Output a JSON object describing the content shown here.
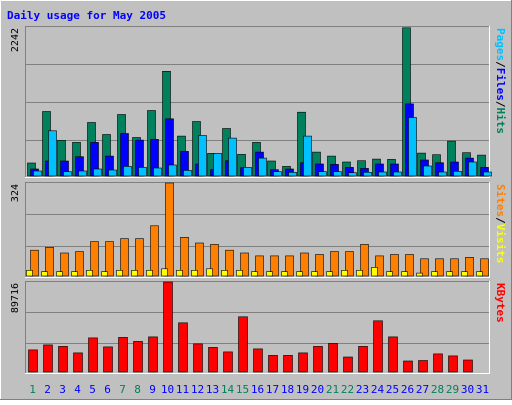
{
  "title": "Daily usage for May 2005",
  "colors": {
    "background": "#c0c0c0",
    "title": "#0000ff",
    "hits": "#00805c",
    "files": "#0000ff",
    "pages": "#00c0ff",
    "visits": "#ffff00",
    "sites": "#ff8000",
    "kbytes": "#ff0000",
    "weekend_label": "#00805c",
    "weekday_label": "#0000ff"
  },
  "chart_data": [
    {
      "type": "bar",
      "panel": "top",
      "scale_label": "2242",
      "ylim": [
        0,
        2242
      ],
      "categories": [
        "1",
        "2",
        "3",
        "4",
        "5",
        "6",
        "7",
        "8",
        "9",
        "10",
        "11",
        "12",
        "13",
        "14",
        "15",
        "16",
        "17",
        "18",
        "19",
        "20",
        "21",
        "22",
        "23",
        "24",
        "25",
        "26",
        "27",
        "28",
        "29",
        "30",
        "31"
      ],
      "weekend_days": [
        1,
        7,
        8,
        14,
        15,
        21,
        22,
        28,
        29
      ],
      "legend": [
        {
          "text": "Pages",
          "color": "#00c0ff"
        },
        {
          "text": "/",
          "color": "#000000"
        },
        {
          "text": "Files",
          "color": "#0000ff"
        },
        {
          "text": "/",
          "color": "#000000"
        },
        {
          "text": "Hits",
          "color": "#00805c"
        }
      ],
      "series": [
        {
          "name": "Hits",
          "color": "#00805c",
          "values": [
            195,
            970,
            535,
            505,
            805,
            625,
            925,
            580,
            985,
            1575,
            600,
            820,
            340,
            715,
            325,
            505,
            225,
            145,
            960,
            360,
            300,
            210,
            230,
            255,
            250,
            2230,
            345,
            320,
            525,
            350,
            315
          ]
        },
        {
          "name": "Files",
          "color": "#0000ff",
          "values": [
            105,
            225,
            225,
            290,
            505,
            300,
            640,
            540,
            550,
            860,
            370,
            180,
            95,
            230,
            125,
            360,
            95,
            105,
            200,
            180,
            175,
            130,
            115,
            180,
            180,
            1085,
            240,
            200,
            210,
            270,
            130
          ]
        },
        {
          "name": "Pages",
          "color": "#00c0ff",
          "values": [
            75,
            680,
            65,
            75,
            105,
            90,
            145,
            130,
            120,
            165,
            85,
            610,
            340,
            570,
            130,
            270,
            65,
            55,
            600,
            65,
            65,
            50,
            55,
            60,
            60,
            880,
            150,
            60,
            70,
            210,
            60
          ]
        }
      ]
    },
    {
      "type": "bar",
      "panel": "middle",
      "scale_label": "324",
      "ylim": [
        0,
        324
      ],
      "categories": [
        "1",
        "2",
        "3",
        "4",
        "5",
        "6",
        "7",
        "8",
        "9",
        "10",
        "11",
        "12",
        "13",
        "14",
        "15",
        "16",
        "17",
        "18",
        "19",
        "20",
        "21",
        "22",
        "23",
        "24",
        "25",
        "26",
        "27",
        "28",
        "29",
        "30",
        "31"
      ],
      "legend": [
        {
          "text": "Sites",
          "color": "#ff8000"
        },
        {
          "text": "/",
          "color": "#000000"
        },
        {
          "text": "Visits",
          "color": "#ffff00"
        }
      ],
      "series": [
        {
          "name": "Sites",
          "color": "#ff8000",
          "values": [
            90,
            100,
            80,
            85,
            120,
            120,
            130,
            130,
            175,
            324,
            135,
            115,
            110,
            90,
            80,
            70,
            70,
            70,
            80,
            75,
            85,
            85,
            110,
            70,
            75,
            75,
            60,
            60,
            60,
            65,
            60
          ]
        },
        {
          "name": "Visits",
          "color": "#ffff00",
          "values": [
            20,
            15,
            15,
            15,
            20,
            15,
            20,
            20,
            20,
            25,
            20,
            20,
            25,
            20,
            20,
            15,
            15,
            15,
            15,
            15,
            15,
            20,
            20,
            30,
            15,
            15,
            10,
            15,
            15,
            15,
            15
          ]
        }
      ]
    },
    {
      "type": "bar",
      "panel": "bottom",
      "scale_label": "89716",
      "ylim": [
        0,
        89716
      ],
      "categories": [
        "1",
        "2",
        "3",
        "4",
        "5",
        "6",
        "7",
        "8",
        "9",
        "10",
        "11",
        "12",
        "13",
        "14",
        "15",
        "16",
        "17",
        "18",
        "19",
        "20",
        "21",
        "22",
        "23",
        "24",
        "25",
        "26",
        "27",
        "28",
        "29",
        "30",
        "31"
      ],
      "legend": [
        {
          "text": "KBytes",
          "color": "#ff0000"
        }
      ],
      "series": [
        {
          "name": "KBytes",
          "color": "#ff0000",
          "values": [
            22000,
            27000,
            25500,
            19000,
            34000,
            25000,
            34500,
            30500,
            35000,
            89716,
            49000,
            28000,
            24500,
            20000,
            55000,
            23000,
            16500,
            16500,
            19000,
            25500,
            28500,
            15000,
            25500,
            51000,
            35000,
            11000,
            11500,
            18000,
            16000,
            12000,
            0
          ]
        }
      ]
    }
  ]
}
